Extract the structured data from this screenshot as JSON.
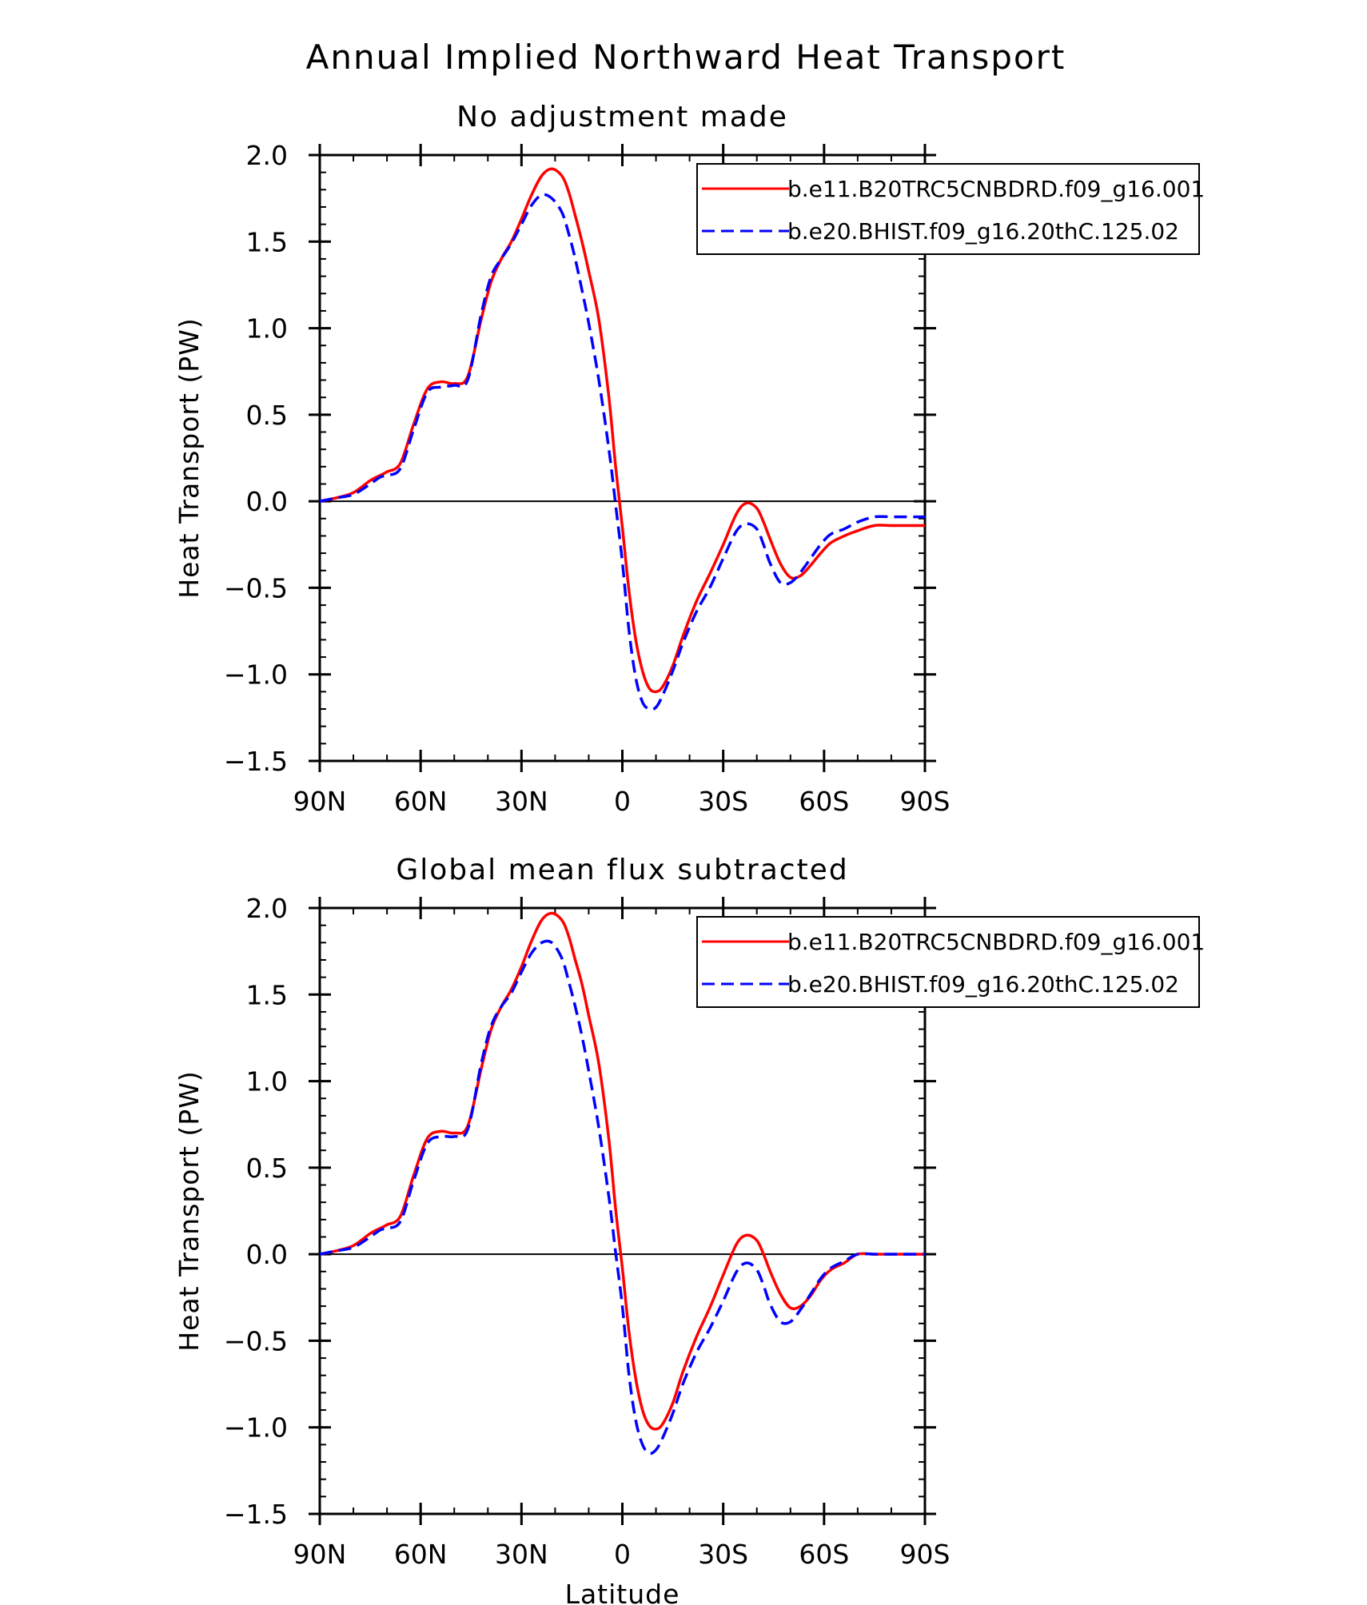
{
  "figure_title": "Annual Implied Northward Heat Transport",
  "x_axis_label": "Latitude",
  "colors": {
    "model_a": "#ff0000",
    "model_b": "#0000ff",
    "axes": "#000000"
  },
  "chart_data": [
    {
      "type": "line",
      "title": "No adjustment made",
      "xlabel": "",
      "ylabel": "Heat Transport (PW)",
      "xlim": [
        90,
        -90
      ],
      "ylim": [
        -1.5,
        2.0
      ],
      "x_ticks": [
        90,
        60,
        30,
        0,
        -30,
        -60,
        -90
      ],
      "x_tick_labels": [
        "90N",
        "60N",
        "30N",
        "0",
        "30S",
        "60S",
        "90S"
      ],
      "y_ticks": [
        2.0,
        1.5,
        1.0,
        0.5,
        0.0,
        -0.5,
        -1.0,
        -1.5
      ],
      "y_tick_labels": [
        "2.0",
        "1.5",
        "1.0",
        "0.5",
        "0.0",
        "−0.5",
        "−1.0",
        "−1.5"
      ],
      "legend_position": "top-right",
      "series": [
        {
          "name": "b.e11.B20TRC5CNBDRD.f09_g16.001",
          "style": "solid",
          "x": [
            90,
            85,
            80,
            75,
            72,
            70,
            66,
            62,
            58,
            54,
            50,
            46,
            42,
            39,
            36,
            33,
            30,
            27,
            24,
            21,
            18,
            16,
            14,
            12,
            10,
            7,
            4,
            2,
            0,
            -2,
            -4,
            -6,
            -8,
            -10,
            -12,
            -15,
            -18,
            -22,
            -26,
            -30,
            -34,
            -37,
            -40,
            -42,
            -44,
            -47,
            -50,
            -53,
            -56,
            -59,
            -62,
            -66,
            -70,
            -75,
            -80,
            -84,
            -90
          ],
          "y": [
            0.0,
            0.02,
            0.05,
            0.12,
            0.15,
            0.17,
            0.22,
            0.45,
            0.65,
            0.69,
            0.68,
            0.72,
            1.05,
            1.27,
            1.4,
            1.5,
            1.63,
            1.77,
            1.88,
            1.92,
            1.88,
            1.79,
            1.65,
            1.5,
            1.33,
            1.05,
            0.6,
            0.2,
            -0.15,
            -0.52,
            -0.8,
            -0.98,
            -1.08,
            -1.1,
            -1.07,
            -0.95,
            -0.78,
            -0.58,
            -0.42,
            -0.25,
            -0.07,
            -0.01,
            -0.04,
            -0.12,
            -0.22,
            -0.36,
            -0.44,
            -0.43,
            -0.37,
            -0.3,
            -0.24,
            -0.2,
            -0.17,
            -0.14,
            -0.14,
            -0.14,
            -0.14
          ]
        },
        {
          "name": "b.e20.BHIST.f09_g16.20thC.125.02",
          "style": "dashed",
          "x": [
            90,
            85,
            80,
            75,
            72,
            70,
            66,
            62,
            58,
            54,
            50,
            46,
            42,
            39,
            36,
            33,
            30,
            27,
            24,
            21,
            18,
            16,
            14,
            12,
            10,
            7,
            4,
            2,
            0,
            -2,
            -4,
            -6,
            -8,
            -10,
            -12,
            -15,
            -18,
            -22,
            -26,
            -30,
            -34,
            -37,
            -40,
            -42,
            -44,
            -47,
            -50,
            -53,
            -56,
            -59,
            -62,
            -66,
            -70,
            -75,
            -80,
            -84,
            -90
          ],
          "y": [
            0.0,
            0.02,
            0.04,
            0.1,
            0.14,
            0.15,
            0.19,
            0.42,
            0.63,
            0.66,
            0.67,
            0.7,
            1.08,
            1.3,
            1.4,
            1.49,
            1.6,
            1.71,
            1.77,
            1.75,
            1.67,
            1.55,
            1.4,
            1.22,
            1.03,
            0.7,
            0.3,
            -0.02,
            -0.35,
            -0.75,
            -1.02,
            -1.16,
            -1.2,
            -1.19,
            -1.12,
            -0.98,
            -0.82,
            -0.64,
            -0.5,
            -0.33,
            -0.17,
            -0.13,
            -0.16,
            -0.25,
            -0.36,
            -0.47,
            -0.47,
            -0.41,
            -0.33,
            -0.25,
            -0.19,
            -0.16,
            -0.12,
            -0.09,
            -0.09,
            -0.09,
            -0.09
          ]
        }
      ]
    },
    {
      "type": "line",
      "title": "Global mean flux subtracted",
      "xlabel": "Latitude",
      "ylabel": "Heat Transport (PW)",
      "xlim": [
        90,
        -90
      ],
      "ylim": [
        -1.5,
        2.0
      ],
      "x_ticks": [
        90,
        60,
        30,
        0,
        -30,
        -60,
        -90
      ],
      "x_tick_labels": [
        "90N",
        "60N",
        "30N",
        "0",
        "30S",
        "60S",
        "90S"
      ],
      "y_ticks": [
        2.0,
        1.5,
        1.0,
        0.5,
        0.0,
        -0.5,
        -1.0,
        -1.5
      ],
      "y_tick_labels": [
        "2.0",
        "1.5",
        "1.0",
        "0.5",
        "0.0",
        "−0.5",
        "−1.0",
        "−1.5"
      ],
      "legend_position": "top-right",
      "series": [
        {
          "name": "b.e11.B20TRC5CNBDRD.f09_g16.001",
          "style": "solid",
          "x": [
            90,
            85,
            80,
            75,
            72,
            70,
            66,
            62,
            58,
            54,
            50,
            46,
            42,
            39,
            36,
            33,
            30,
            27,
            24,
            21,
            18,
            16,
            14,
            12,
            10,
            7,
            4,
            2,
            0,
            -2,
            -4,
            -6,
            -8,
            -10,
            -12,
            -15,
            -18,
            -22,
            -26,
            -30,
            -34,
            -37,
            -40,
            -42,
            -44,
            -47,
            -50,
            -53,
            -56,
            -59,
            -62,
            -66,
            -70,
            -75,
            -80,
            -84,
            -90
          ],
          "y": [
            0.0,
            0.02,
            0.05,
            0.12,
            0.15,
            0.17,
            0.22,
            0.46,
            0.67,
            0.71,
            0.7,
            0.74,
            1.07,
            1.3,
            1.43,
            1.53,
            1.66,
            1.81,
            1.93,
            1.97,
            1.93,
            1.84,
            1.7,
            1.56,
            1.38,
            1.1,
            0.66,
            0.26,
            -0.08,
            -0.45,
            -0.72,
            -0.9,
            -0.99,
            -1.01,
            -0.98,
            -0.86,
            -0.68,
            -0.48,
            -0.31,
            -0.12,
            0.06,
            0.11,
            0.08,
            0.0,
            -0.1,
            -0.23,
            -0.31,
            -0.3,
            -0.24,
            -0.15,
            -0.09,
            -0.05,
            0.0,
            0.0,
            0.0,
            0.0,
            0.0
          ]
        },
        {
          "name": "b.e20.BHIST.f09_g16.20thC.125.02",
          "style": "dashed",
          "x": [
            90,
            85,
            80,
            75,
            72,
            70,
            66,
            62,
            58,
            54,
            50,
            46,
            42,
            39,
            36,
            33,
            30,
            27,
            24,
            21,
            18,
            16,
            14,
            12,
            10,
            7,
            4,
            2,
            0,
            -2,
            -4,
            -6,
            -8,
            -10,
            -12,
            -15,
            -18,
            -22,
            -26,
            -30,
            -34,
            -37,
            -40,
            -42,
            -44,
            -47,
            -50,
            -53,
            -56,
            -59,
            -62,
            -66,
            -70,
            -75,
            -80,
            -84,
            -90
          ],
          "y": [
            0.0,
            0.02,
            0.04,
            0.1,
            0.14,
            0.15,
            0.19,
            0.43,
            0.64,
            0.68,
            0.68,
            0.72,
            1.1,
            1.32,
            1.43,
            1.51,
            1.63,
            1.74,
            1.8,
            1.8,
            1.71,
            1.58,
            1.43,
            1.26,
            1.06,
            0.73,
            0.33,
            0.01,
            -0.3,
            -0.7,
            -0.96,
            -1.1,
            -1.15,
            -1.13,
            -1.06,
            -0.92,
            -0.75,
            -0.57,
            -0.43,
            -0.27,
            -0.1,
            -0.05,
            -0.09,
            -0.18,
            -0.29,
            -0.39,
            -0.39,
            -0.32,
            -0.23,
            -0.14,
            -0.08,
            -0.04,
            0.0,
            0.0,
            0.0,
            0.0,
            0.0
          ]
        }
      ]
    }
  ]
}
